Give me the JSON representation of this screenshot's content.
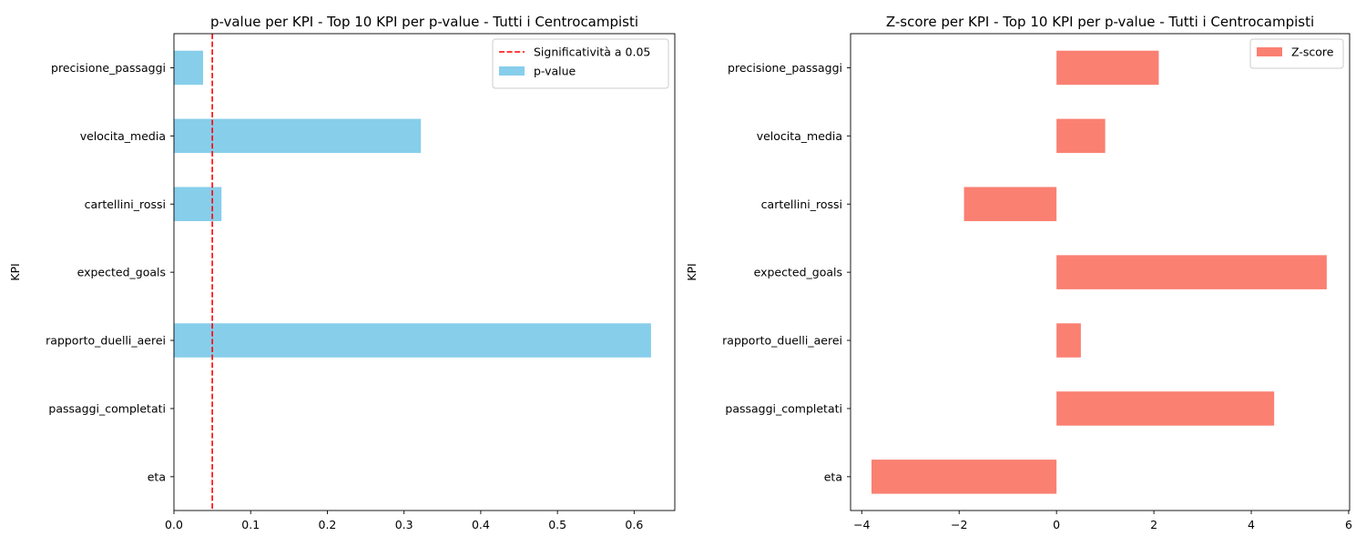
{
  "chart_data": [
    {
      "type": "bar",
      "orientation": "horizontal",
      "title": "p-value per KPI - Top 10 KPI per p-value - Tutti i Centrocampisti",
      "xlabel": "",
      "ylabel": "KPI",
      "categories": [
        "precisione_passaggi",
        "velocita_media",
        "cartellini_rossi",
        "expected_goals",
        "rapporto_duelli_aerei",
        "passaggi_completati",
        "eta"
      ],
      "series": [
        {
          "name": "p-value",
          "color": "#87ceeb",
          "values": [
            0.038,
            0.322,
            0.062,
            0.0,
            0.622,
            0.0,
            0.0
          ]
        }
      ],
      "reference_line": {
        "name": "Significatività a 0.05",
        "value": 0.05,
        "color": "#ff0000",
        "style": "dashed"
      },
      "xlim": [
        0,
        0.653
      ],
      "xticks": [
        0.0,
        0.1,
        0.2,
        0.3,
        0.4,
        0.5,
        0.6
      ],
      "xtick_labels": [
        "0.0",
        "0.1",
        "0.2",
        "0.3",
        "0.4",
        "0.5",
        "0.6"
      ],
      "legend_position": "top-right",
      "grid": false
    },
    {
      "type": "bar",
      "orientation": "horizontal",
      "title": "Z-score per KPI - Top 10 KPI per p-value - Tutti i Centrocampisti",
      "xlabel": "",
      "ylabel": "KPI",
      "categories": [
        "precisione_passaggi",
        "velocita_media",
        "cartellini_rossi",
        "expected_goals",
        "rapporto_duelli_aerei",
        "passaggi_completati",
        "eta"
      ],
      "series": [
        {
          "name": "Z-score",
          "color": "#fa8072",
          "values": [
            2.1,
            1.0,
            -1.9,
            5.55,
            0.5,
            4.47,
            -3.8
          ]
        }
      ],
      "xlim": [
        -4.23,
        6.02
      ],
      "xticks": [
        -4,
        -2,
        0,
        2,
        4,
        6
      ],
      "xtick_labels": [
        "−4",
        "−2",
        "0",
        "2",
        "4",
        "6"
      ],
      "legend_position": "top-right",
      "grid": false
    }
  ]
}
